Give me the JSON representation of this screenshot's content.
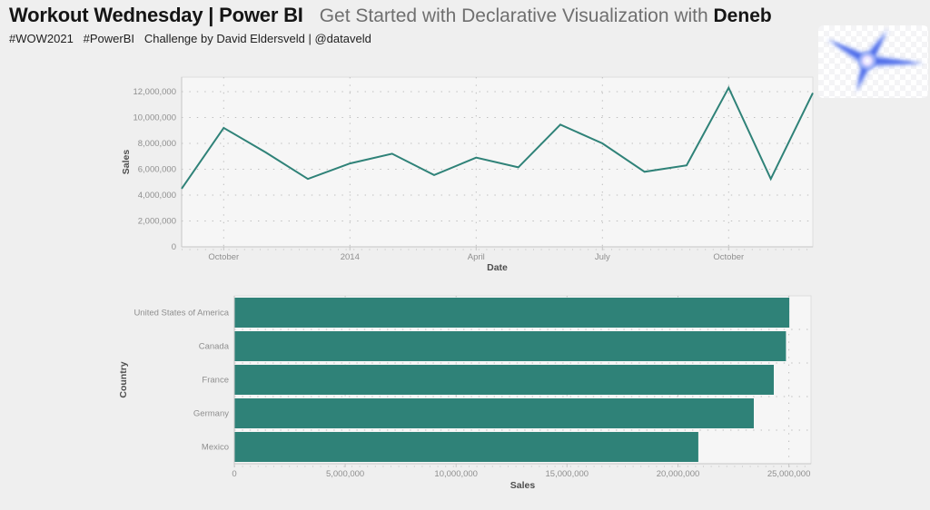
{
  "header": {
    "title": "Workout Wednesday | Power BI",
    "subtitle_prefix": "Get Started with Declarative Visualization with ",
    "subtitle_emphasis": "Deneb",
    "tags": "#WOW2021   #PowerBI   Challenge by David Eldersveld | @dataveld",
    "logo": "deneb-star-logo"
  },
  "colors": {
    "accent_teal": "#2F8278",
    "logo_blue": "#5a7cf0",
    "grid_gray": "#bdbdbd",
    "axis_text": "#8f8f8f",
    "axis_title": "#4d4d4d"
  },
  "chart_data": [
    {
      "type": "line",
      "title": "Sales by Date (monthly)",
      "xlabel": "Date",
      "ylabel": "Sales",
      "x": [
        "Sep 2013",
        "Oct 2013",
        "Nov 2013",
        "Dec 2013",
        "Jan 2014",
        "Feb 2014",
        "Mar 2014",
        "Apr 2014",
        "May 2014",
        "Jun 2014",
        "Jul 2014",
        "Aug 2014",
        "Sep 2014",
        "Oct 2014",
        "Nov 2014",
        "Dec 2014"
      ],
      "values": [
        4500000,
        9200000,
        7300000,
        5250000,
        6450000,
        7200000,
        5550000,
        6900000,
        6150000,
        9450000,
        8000000,
        5800000,
        6300000,
        12300000,
        5250000,
        11900000
      ],
      "x_tick_labels": [
        "October",
        "2014",
        "April",
        "July",
        "October"
      ],
      "x_tick_index": [
        1,
        4,
        7,
        10,
        13
      ],
      "y_ticks": [
        0,
        2000000,
        4000000,
        6000000,
        8000000,
        10000000,
        12000000
      ],
      "y_tick_labels": [
        "0",
        "2,000,000",
        "4,000,000",
        "6,000,000",
        "8,000,000",
        "10,000,000",
        "12,000,000"
      ],
      "ylim": [
        0,
        13100000
      ],
      "grid": "dotted",
      "legend": "none",
      "line_color": "#2F8278"
    },
    {
      "type": "bar",
      "orientation": "horizontal",
      "title": "Sales by Country",
      "xlabel": "Sales",
      "ylabel": "Country",
      "categories": [
        "United States of America",
        "Canada",
        "France",
        "Germany",
        "Mexico"
      ],
      "values": [
        25000000,
        24850000,
        24300000,
        23400000,
        20900000
      ],
      "x_ticks": [
        0,
        5000000,
        10000000,
        15000000,
        20000000,
        25000000
      ],
      "x_tick_labels": [
        "0",
        "5,000,000",
        "10,000,000",
        "15,000,000",
        "20,000,000",
        "25,000,000"
      ],
      "xlim": [
        0,
        26000000
      ],
      "grid": "dotted",
      "legend": "none",
      "bar_color": "#2F8278"
    }
  ]
}
